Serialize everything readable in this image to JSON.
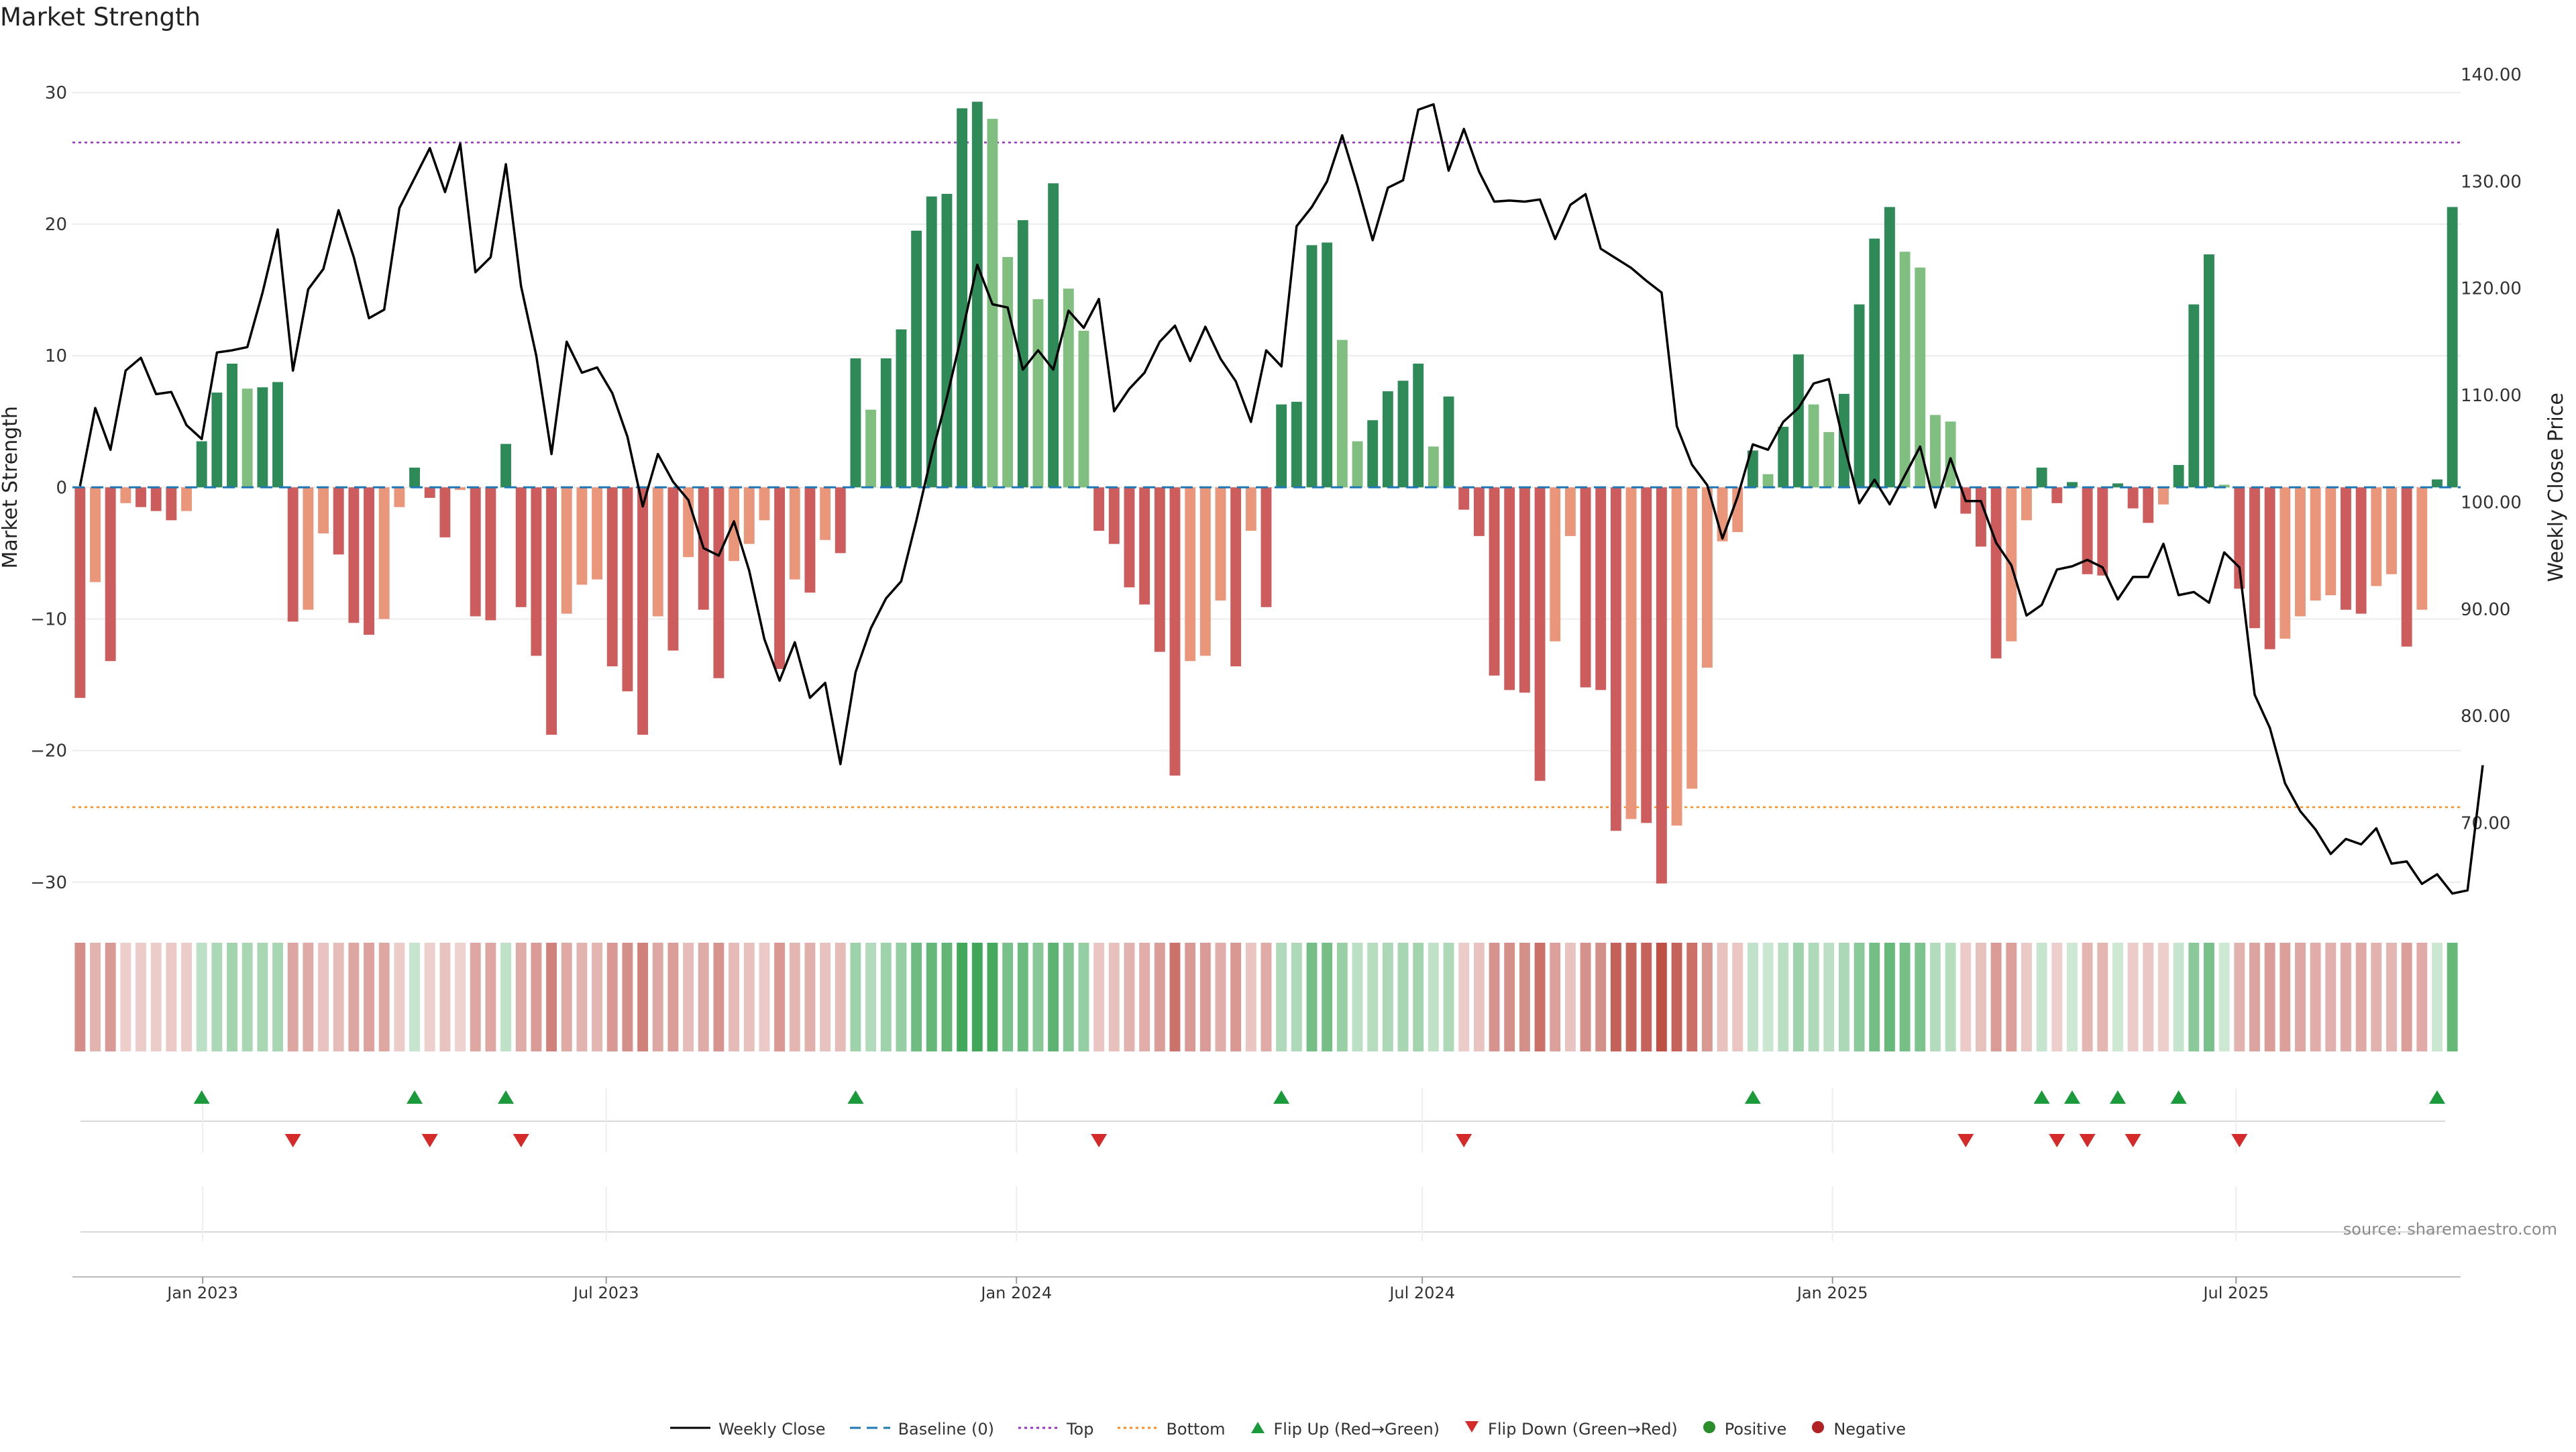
{
  "title": "Market Strength",
  "source": "source: sharemaestro.com",
  "chart_data": {
    "type": "bar",
    "title": "Market Strength",
    "ylabel": "Market Strength",
    "ylabel_right": "Weekly Close Price",
    "ylim": [
      -32,
      33
    ],
    "ylim_right": [
      62,
      142
    ],
    "yticks": [
      -30,
      -20,
      -10,
      0,
      10,
      20,
      30
    ],
    "yticks_right": [
      70,
      80,
      90,
      100,
      110,
      120,
      130,
      140
    ],
    "ytick_labels_right": [
      "70.00",
      "80.00",
      "90.00",
      "100.00",
      "110.00",
      "120.00",
      "130.00",
      "140.00"
    ],
    "top_line": 26.2,
    "bottom_line": -24.3,
    "x_start": "2022-11-07",
    "x_end": "2025-10-06",
    "xticks": [
      "2023-01-01",
      "2023-07-01",
      "2024-01-01",
      "2024-07-01",
      "2025-01-01",
      "2025-07-01"
    ],
    "xtick_labels": [
      "Jan 2023",
      "Jul 2023",
      "Jan 2024",
      "Jul 2024",
      "Jan 2025",
      "Jul 2025"
    ],
    "grid": true,
    "legend_position": "bottom-center",
    "colors": {
      "strong_green": "#2e8b57",
      "light_green": "#80bf80",
      "strong_red": "#cd5c5c",
      "light_red": "#e9967a",
      "baseline": "#1f77b4",
      "top": "#9b30c8",
      "bottom": "#ff8c1a",
      "price": "#000000",
      "flip_up": "#1a9a3a",
      "flip_down": "#d42a2a",
      "positive": "#2a8f2a",
      "negative": "#b22222"
    },
    "series": [
      {
        "name": "Market Strength",
        "values": [
          -16,
          -7.2,
          -13.2,
          -1.2,
          -1.5,
          -1.8,
          -2.5,
          -1.8,
          3.5,
          7.2,
          9.4,
          7.5,
          7.6,
          8,
          -10.2,
          -9.3,
          -3.5,
          -5.1,
          -10.3,
          -11.2,
          -10,
          -1.5,
          1.5,
          -0.8,
          -3.8,
          -0.2,
          -9.8,
          -10.1,
          3.3,
          -9.1,
          -12.8,
          -18.8,
          -9.6,
          -7.4,
          -7,
          -13.6,
          -15.5,
          -18.8,
          -9.8,
          -12.4,
          -5.3,
          -9.3,
          -14.5,
          -5.6,
          -4.3,
          -2.5,
          -13.8,
          -7,
          -8,
          -4,
          -5,
          9.8,
          5.9,
          9.8,
          12,
          19.5,
          22.1,
          22.3,
          28.8,
          29.3,
          28,
          17.5,
          20.3,
          14.3,
          23.1,
          15.1,
          11.9,
          -3.3,
          -4.3,
          -7.6,
          -8.9,
          -12.5,
          -21.9,
          -13.2,
          -12.8,
          -8.6,
          -13.6,
          -3.3,
          -9.1,
          6.3,
          6.5,
          18.4,
          18.6,
          11.2,
          3.5,
          5.1,
          7.3,
          8.1,
          9.4,
          3.1,
          6.9,
          -1.7,
          -3.7,
          -14.3,
          -15.4,
          -15.6,
          -22.3,
          -11.7,
          -3.7,
          -15.2,
          -15.4,
          -26.1,
          -25.2,
          -25.5,
          -30.1,
          -25.7,
          -22.9,
          -13.7,
          -4.1,
          -3.4,
          2.8,
          1,
          4.6,
          10.1,
          6.3,
          4.2,
          7.1,
          13.9,
          18.9,
          21.3,
          17.9,
          16.7,
          5.5,
          5,
          -2,
          -4.5,
          -13,
          -11.7,
          -2.5,
          1.5,
          -1.2,
          0.4,
          -6.6,
          -6.7,
          0.3,
          -1.6,
          -2.7,
          -1.3,
          1.7,
          13.9,
          17.7,
          0.2,
          -7.7,
          -10.7,
          -12.3,
          -11.5,
          -9.8,
          -8.6,
          -8.2,
          -9.3,
          -9.6,
          -7.5,
          -6.6,
          -12.1,
          -9.3,
          0.6,
          21.3
        ]
      },
      {
        "name": "Weekly Close",
        "values": [
          101.5,
          108.8,
          104.9,
          112.3,
          113.5,
          110.1,
          110.3,
          107.2,
          105.9,
          114,
          114.2,
          114.5,
          119.6,
          125.5,
          112.3,
          119.9,
          121.8,
          127.3,
          122.9,
          117.2,
          118,
          127.5,
          130.3,
          133.1,
          129,
          133.5,
          121.5,
          122.9,
          131.6,
          120.2,
          113.7,
          104.5,
          115,
          112.1,
          112.6,
          110.2,
          106.1,
          99.6,
          104.5,
          101.9,
          100.2,
          95.7,
          95,
          98.2,
          93.6,
          87.2,
          83.3,
          86.9,
          81.7,
          83.1,
          75.5,
          84.1,
          88.2,
          91,
          92.6,
          98.3,
          104.4,
          109.8,
          115.8,
          122.2,
          118.5,
          118.2,
          112.4,
          114.2,
          112.4,
          117.9,
          116.3,
          119,
          108.5,
          110.6,
          112.1,
          115,
          116.5,
          113.2,
          116.4,
          113.4,
          111.3,
          107.5,
          114.2,
          112.7,
          125.8,
          127.6,
          130,
          134.3,
          129.6,
          124.5,
          129.4,
          130.1,
          136.7,
          137.2,
          131,
          134.9,
          130.9,
          128.1,
          128.2,
          128.1,
          128.3,
          124.6,
          127.8,
          128.8,
          123.7,
          122.8,
          121.9,
          120.7,
          119.6,
          107.1,
          103.5,
          101.6,
          96.6,
          100.5,
          105.4,
          104.9,
          107.5,
          108.8,
          111.1,
          111.5,
          105.4,
          99.9,
          102.1,
          99.8,
          102.5,
          105.2,
          99.5,
          104.1,
          100.1,
          100.1,
          96.2,
          94.1,
          89.4,
          90.4,
          93.7,
          94,
          94.6,
          93.9,
          90.9,
          93,
          93,
          96.1,
          91.3,
          91.6,
          90.6,
          95.3,
          93.9,
          82,
          78.9,
          73.7,
          71.1,
          69.4,
          67.1,
          68.5,
          68,
          69.5,
          66.2,
          66.4,
          64.3,
          65.2,
          63.4,
          63.7,
          75.4
        ]
      }
    ],
    "series_styles": [
      {
        "name": "Weekly Close",
        "style": "line"
      },
      {
        "name": "Baseline (0)",
        "style": "dashed"
      },
      {
        "name": "Top",
        "style": "dotted"
      },
      {
        "name": "Bottom",
        "style": "dotted"
      },
      {
        "name": "Flip Up (Red→Green)",
        "style": "triangle-up"
      },
      {
        "name": "Flip Down (Green→Red)",
        "style": "triangle-down"
      },
      {
        "name": "Positive",
        "style": "circle"
      },
      {
        "name": "Negative",
        "style": "circle"
      }
    ]
  }
}
